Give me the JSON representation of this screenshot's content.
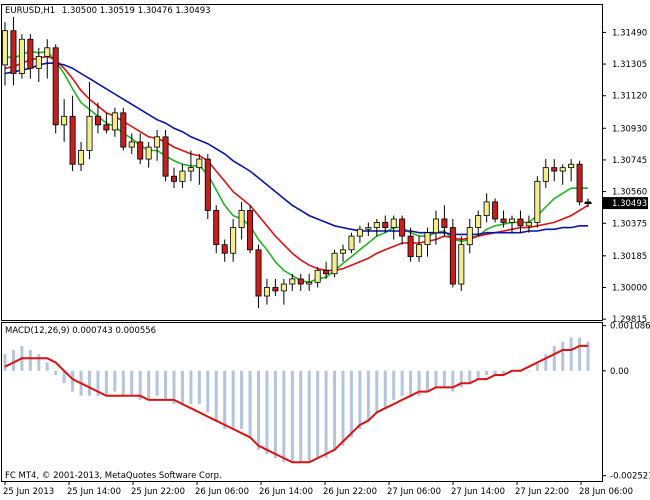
{
  "header": {
    "symbol": "EURUSD,H1",
    "ohlc": "1.30500 1.30519 1.30476 1.30493"
  },
  "macd": {
    "label": "MACD(12,26,9) 0.000743 0.000556"
  },
  "footer": {
    "copyright": "FC MT4, © 2001-2013, MetaQuotes Software Corp."
  },
  "colors": {
    "bull": "#f2ee8c",
    "bear": "#c81e1e",
    "wick": "#000000",
    "ma_green": "#22b422",
    "ma_red": "#dd1111",
    "ma_blue": "#0a14aa",
    "macd_hist": "#b4c4dc",
    "macd_signal": "#dd1111",
    "grid": "#000000"
  },
  "chart_data": [
    {
      "type": "candlestick",
      "symbol": "EURUSD",
      "timeframe": "H1",
      "ylim": [
        1.2981,
        1.3165
      ],
      "y_ticks": [
        "1.31490",
        "1.31305",
        "1.31120",
        "1.30930",
        "1.30745",
        "1.30560",
        "1.30375",
        "1.30185",
        "1.30000",
        "1.29815"
      ],
      "x_ticks": [
        "25 Jun 2013",
        "25 Jun 14:00",
        "25 Jun 22:00",
        "26 Jun 06:00",
        "26 Jun 14:00",
        "26 Jun 22:00",
        "27 Jun 06:00",
        "27 Jun 14:00",
        "27 Jun 22:00",
        "28 Jun 06:00"
      ],
      "current_price": "1.30493",
      "candles": [
        [
          1.313,
          1.3155,
          1.3118,
          1.315
        ],
        [
          1.315,
          1.3158,
          1.3118,
          1.3125
        ],
        [
          1.3125,
          1.3148,
          1.3122,
          1.3145
        ],
        [
          1.3145,
          1.3148,
          1.3122,
          1.3128
        ],
        [
          1.3128,
          1.314,
          1.312,
          1.3135
        ],
        [
          1.3135,
          1.3145,
          1.3122,
          1.314
        ],
        [
          1.314,
          1.3142,
          1.309,
          1.3095
        ],
        [
          1.3095,
          1.311,
          1.3085,
          1.31
        ],
        [
          1.31,
          1.3112,
          1.3068,
          1.3072
        ],
        [
          1.3072,
          1.3085,
          1.3068,
          1.308
        ],
        [
          1.308,
          1.312,
          1.3075,
          1.31
        ],
        [
          1.31,
          1.3108,
          1.309,
          1.3095
        ],
        [
          1.3095,
          1.3102,
          1.309,
          1.3092
        ],
        [
          1.3092,
          1.3105,
          1.3088,
          1.3102
        ],
        [
          1.3102,
          1.3105,
          1.308,
          1.3082
        ],
        [
          1.3082,
          1.309,
          1.3078,
          1.3085
        ],
        [
          1.3085,
          1.309,
          1.3072,
          1.3075
        ],
        [
          1.3075,
          1.3085,
          1.307,
          1.3082
        ],
        [
          1.3082,
          1.3092,
          1.3074,
          1.3088
        ],
        [
          1.3088,
          1.3092,
          1.3062,
          1.3065
        ],
        [
          1.3065,
          1.307,
          1.3058,
          1.3062
        ],
        [
          1.3062,
          1.3072,
          1.3058,
          1.3068
        ],
        [
          1.3068,
          1.308,
          1.3062,
          1.307
        ],
        [
          1.307,
          1.3078,
          1.306,
          1.3075
        ],
        [
          1.3075,
          1.3078,
          1.304,
          1.3045
        ],
        [
          1.3045,
          1.3048,
          1.302,
          1.3025
        ],
        [
          1.3025,
          1.3028,
          1.3015,
          1.302
        ],
        [
          1.302,
          1.304,
          1.3015,
          1.3035
        ],
        [
          1.3035,
          1.305,
          1.3028,
          1.3045
        ],
        [
          1.3045,
          1.3048,
          1.302,
          1.3022
        ],
        [
          1.3022,
          1.3025,
          1.2988,
          1.2995
        ],
        [
          1.2995,
          1.3005,
          1.299,
          1.3
        ],
        [
          1.3,
          1.3005,
          1.2995,
          1.2998
        ],
        [
          1.2998,
          1.3005,
          1.299,
          1.3002
        ],
        [
          1.3002,
          1.3008,
          1.2998,
          1.3005
        ],
        [
          1.3005,
          1.3008,
          1.2998,
          1.3002
        ],
        [
          1.3002,
          1.3008,
          1.2998,
          1.3003
        ],
        [
          1.3003,
          1.3012,
          1.3,
          1.301
        ],
        [
          1.301,
          1.3015,
          1.3005,
          1.3008
        ],
        [
          1.3008,
          1.3022,
          1.3006,
          1.302
        ],
        [
          1.302,
          1.3025,
          1.3015,
          1.3022
        ],
        [
          1.3022,
          1.3032,
          1.302,
          1.303
        ],
        [
          1.303,
          1.3036,
          1.3026,
          1.3034
        ],
        [
          1.3034,
          1.3038,
          1.303,
          1.3035
        ],
        [
          1.3035,
          1.304,
          1.303,
          1.3038
        ],
        [
          1.3038,
          1.3042,
          1.3032,
          1.3035
        ],
        [
          1.3035,
          1.3042,
          1.3028,
          1.304
        ],
        [
          1.304,
          1.3042,
          1.3025,
          1.303
        ],
        [
          1.303,
          1.3035,
          1.3015,
          1.3018
        ],
        [
          1.3018,
          1.303,
          1.3015,
          1.3025
        ],
        [
          1.3025,
          1.3035,
          1.3018,
          1.3032
        ],
        [
          1.3032,
          1.3045,
          1.3025,
          1.304
        ],
        [
          1.304,
          1.3048,
          1.303,
          1.3035
        ],
        [
          1.3035,
          1.304,
          1.3,
          1.3002
        ],
        [
          1.3002,
          1.303,
          1.2998,
          1.3025
        ],
        [
          1.3025,
          1.304,
          1.302,
          1.3035
        ],
        [
          1.3035,
          1.3045,
          1.303,
          1.3042
        ],
        [
          1.3042,
          1.3055,
          1.3038,
          1.305
        ],
        [
          1.305,
          1.3052,
          1.3038,
          1.304
        ],
        [
          1.304,
          1.3045,
          1.3035,
          1.3038
        ],
        [
          1.3038,
          1.3042,
          1.3032,
          1.304
        ],
        [
          1.304,
          1.3045,
          1.3032,
          1.3036
        ],
        [
          1.3036,
          1.3042,
          1.3032,
          1.3038
        ],
        [
          1.3038,
          1.3065,
          1.3035,
          1.3062
        ],
        [
          1.3062,
          1.3075,
          1.3058,
          1.307
        ],
        [
          1.307,
          1.3075,
          1.3062,
          1.3068
        ],
        [
          1.3068,
          1.3072,
          1.306,
          1.307
        ],
        [
          1.307,
          1.3075,
          1.3062,
          1.3072
        ],
        [
          1.3072,
          1.3074,
          1.3048,
          1.305
        ],
        [
          1.305,
          1.3052,
          1.3048,
          1.3049
        ]
      ],
      "moving_averages": [
        {
          "color": "green",
          "values": [
            1.3135,
            1.3134,
            1.3136,
            1.3138,
            1.3137,
            1.3138,
            1.3132,
            1.3125,
            1.3116,
            1.3108,
            1.3104,
            1.31,
            1.3096,
            1.3094,
            1.309,
            1.3087,
            1.3083,
            1.308,
            1.308,
            1.3077,
            1.3074,
            1.3072,
            1.3071,
            1.3071,
            1.3066,
            1.3057,
            1.3048,
            1.3042,
            1.304,
            1.3036,
            1.3028,
            1.3022,
            1.3015,
            1.301,
            1.3007,
            1.3004,
            1.3003,
            1.3005,
            1.3006,
            1.301,
            1.3014,
            1.3018,
            1.3022,
            1.3026,
            1.303,
            1.3032,
            1.3035,
            1.3035,
            1.3032,
            1.303,
            1.303,
            1.3032,
            1.3033,
            1.3028,
            1.3027,
            1.3028,
            1.303,
            1.3034,
            1.3036,
            1.3037,
            1.3038,
            1.3038,
            1.3038,
            1.3042,
            1.3047,
            1.3052,
            1.3055,
            1.3058,
            1.3058,
            1.3058
          ]
        },
        {
          "color": "red",
          "values": [
            1.3128,
            1.3129,
            1.3131,
            1.3133,
            1.3134,
            1.3135,
            1.3133,
            1.3128,
            1.3122,
            1.3115,
            1.311,
            1.3106,
            1.3102,
            1.31,
            1.3097,
            1.3094,
            1.3091,
            1.3088,
            1.3087,
            1.3085,
            1.3082,
            1.308,
            1.3078,
            1.3077,
            1.3074,
            1.3068,
            1.3062,
            1.3056,
            1.3052,
            1.3048,
            1.3042,
            1.3036,
            1.303,
            1.3025,
            1.302,
            1.3016,
            1.3013,
            1.3011,
            1.301,
            1.301,
            1.3011,
            1.3013,
            1.3015,
            1.3017,
            1.302,
            1.3022,
            1.3024,
            1.3026,
            1.3026,
            1.3026,
            1.3027,
            1.3028,
            1.303,
            1.3029,
            1.3028,
            1.3029,
            1.303,
            1.3031,
            1.3032,
            1.3033,
            1.3034,
            1.3035,
            1.3035,
            1.3036,
            1.3037,
            1.3038,
            1.304,
            1.3042,
            1.3045,
            1.3048
          ]
        },
        {
          "color": "blue",
          "values": [
            1.3125,
            1.3126,
            1.3127,
            1.3128,
            1.313,
            1.3131,
            1.3131,
            1.313,
            1.3128,
            1.3125,
            1.3122,
            1.3119,
            1.3116,
            1.3113,
            1.311,
            1.3107,
            1.3104,
            1.3101,
            1.3098,
            1.3096,
            1.3093,
            1.3091,
            1.3088,
            1.3086,
            1.3084,
            1.3081,
            1.3078,
            1.3074,
            1.3071,
            1.3068,
            1.3064,
            1.306,
            1.3056,
            1.3052,
            1.3048,
            1.3045,
            1.3042,
            1.304,
            1.3038,
            1.3036,
            1.3035,
            1.3034,
            1.3033,
            1.3033,
            1.3033,
            1.3033,
            1.3033,
            1.3033,
            1.3033,
            1.3032,
            1.3032,
            1.3032,
            1.3032,
            1.3031,
            1.3031,
            1.3031,
            1.3031,
            1.3032,
            1.3032,
            1.3032,
            1.3032,
            1.3032,
            1.3033,
            1.3033,
            1.3034,
            1.3034,
            1.3035,
            1.3035,
            1.3036,
            1.3036
          ]
        }
      ]
    },
    {
      "type": "bar+line",
      "indicator": "MACD(12,26,9)",
      "ylim": [
        -0.00265,
        0.00115
      ],
      "y_ticks": [
        "0.001086",
        "0.00",
        "-0.002521"
      ],
      "histogram": [
        0.0004,
        0.0005,
        0.0006,
        0.0005,
        0.0004,
        0.0002,
        -0.0001,
        -0.0003,
        -0.0005,
        -0.0006,
        -0.0006,
        -0.0006,
        -0.0006,
        -0.0005,
        -0.0006,
        -0.0006,
        -0.0007,
        -0.0007,
        -0.0006,
        -0.0007,
        -0.0008,
        -0.0008,
        -0.0008,
        -0.0008,
        -0.001,
        -0.0012,
        -0.0014,
        -0.0014,
        -0.0014,
        -0.0016,
        -0.0019,
        -0.002,
        -0.0021,
        -0.0022,
        -0.0022,
        -0.0022,
        -0.0022,
        -0.0021,
        -0.0021,
        -0.0019,
        -0.0018,
        -0.0016,
        -0.0014,
        -0.0012,
        -0.001,
        -0.0009,
        -0.0007,
        -0.0006,
        -0.0006,
        -0.0006,
        -0.0005,
        -0.0004,
        -0.0004,
        -0.0005,
        -0.0004,
        -0.0003,
        -0.0002,
        -0.0001,
        -0.0001,
        -0.0001,
        0.0,
        0.0,
        0.0,
        0.0002,
        0.0004,
        0.0006,
        0.0007,
        0.0008,
        0.0008,
        0.0007
      ],
      "signal": [
        0.0001,
        0.0002,
        0.0003,
        0.0003,
        0.0003,
        0.0003,
        0.0002,
        0.0,
        -0.0002,
        -0.0003,
        -0.0004,
        -0.0005,
        -0.0006,
        -0.0006,
        -0.0006,
        -0.0006,
        -0.0006,
        -0.0007,
        -0.0007,
        -0.0007,
        -0.0007,
        -0.0008,
        -0.0009,
        -0.001,
        -0.0011,
        -0.0012,
        -0.0013,
        -0.0014,
        -0.0015,
        -0.0016,
        -0.0018,
        -0.0019,
        -0.002,
        -0.0021,
        -0.0022,
        -0.0022,
        -0.0022,
        -0.0021,
        -0.002,
        -0.0019,
        -0.0017,
        -0.0015,
        -0.0013,
        -0.0012,
        -0.001,
        -0.0009,
        -0.0008,
        -0.0007,
        -0.0006,
        -0.0005,
        -0.0005,
        -0.0004,
        -0.0004,
        -0.0004,
        -0.0003,
        -0.0003,
        -0.0002,
        -0.0002,
        -0.0001,
        -0.0001,
        0.0,
        0.0,
        0.0001,
        0.0002,
        0.0003,
        0.0004,
        0.0005,
        0.0005,
        0.0006,
        0.0006
      ]
    }
  ]
}
